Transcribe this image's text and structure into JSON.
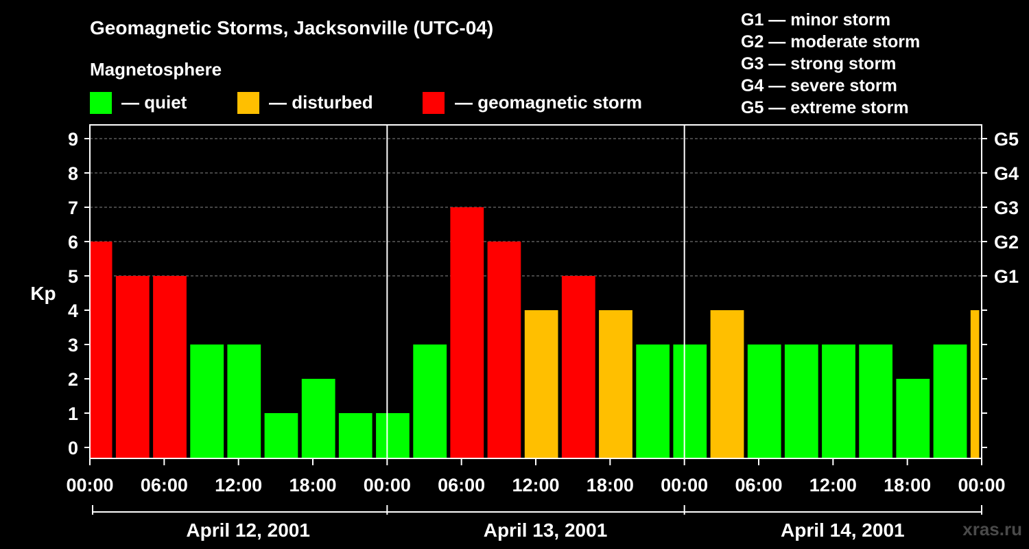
{
  "header": {
    "title": "Geomagnetic Storms, Jacksonville (UTC-04)",
    "legend_heading": "Magnetosphere",
    "legend": [
      {
        "key": "quiet",
        "label": "— quiet",
        "color": "#00ff00"
      },
      {
        "key": "disturbed",
        "label": "— disturbed",
        "color": "#ffbf00"
      },
      {
        "key": "storm",
        "label": "— geomagnetic storm",
        "color": "#ff0000"
      }
    ],
    "storm_scale": [
      "G1 — minor storm",
      "G2 — moderate storm",
      "G3 — strong storm",
      "G4 — severe storm",
      "G5 — extreme storm"
    ]
  },
  "watermark": "xras.ru",
  "chart_data": {
    "type": "bar",
    "title": "Geomagnetic Storms, Jacksonville (UTC-04)",
    "ylabel": "Kp",
    "ylim": [
      0,
      9
    ],
    "yticks": [
      "0",
      "1",
      "2",
      "3",
      "4",
      "5",
      "6",
      "7",
      "8",
      "9"
    ],
    "right_ticks": [
      {
        "kp": 5,
        "label": "G1"
      },
      {
        "kp": 6,
        "label": "G2"
      },
      {
        "kp": 7,
        "label": "G3"
      },
      {
        "kp": 8,
        "label": "G4"
      },
      {
        "kp": 9,
        "label": "G5"
      }
    ],
    "grid": "horizontal dashed at Kp 5–9",
    "xlim_hours": [
      0,
      72
    ],
    "xticks": [
      {
        "hour": 0,
        "label": "00:00"
      },
      {
        "hour": 6,
        "label": "06:00"
      },
      {
        "hour": 12,
        "label": "12:00"
      },
      {
        "hour": 18,
        "label": "18:00"
      },
      {
        "hour": 24,
        "label": "00:00"
      },
      {
        "hour": 30,
        "label": "06:00"
      },
      {
        "hour": 36,
        "label": "12:00"
      },
      {
        "hour": 42,
        "label": "18:00"
      },
      {
        "hour": 48,
        "label": "00:00"
      },
      {
        "hour": 54,
        "label": "06:00"
      },
      {
        "hour": 60,
        "label": "12:00"
      },
      {
        "hour": 66,
        "label": "18:00"
      },
      {
        "hour": 72,
        "label": "00:00"
      }
    ],
    "days": [
      {
        "label": "April 12, 2001",
        "start_hour": 0,
        "end_hour": 24
      },
      {
        "label": "April 13, 2001",
        "start_hour": 24,
        "end_hour": 48
      },
      {
        "label": "April 14, 2001",
        "start_hour": 48,
        "end_hour": 72
      }
    ],
    "colors": {
      "quiet": "#00ff00",
      "disturbed": "#ffbf00",
      "storm": "#ff0000"
    },
    "bars": [
      {
        "start_hour": 0,
        "end_hour": 1.8,
        "kp": 6,
        "level": "storm"
      },
      {
        "start_hour": 2.1,
        "end_hour": 4.8,
        "kp": 5,
        "level": "storm"
      },
      {
        "start_hour": 5.1,
        "end_hour": 7.8,
        "kp": 5,
        "level": "storm"
      },
      {
        "start_hour": 8.1,
        "end_hour": 10.8,
        "kp": 3,
        "level": "quiet"
      },
      {
        "start_hour": 11.1,
        "end_hour": 13.8,
        "kp": 3,
        "level": "quiet"
      },
      {
        "start_hour": 14.1,
        "end_hour": 16.8,
        "kp": 1,
        "level": "quiet"
      },
      {
        "start_hour": 17.1,
        "end_hour": 19.8,
        "kp": 2,
        "level": "quiet"
      },
      {
        "start_hour": 20.1,
        "end_hour": 22.8,
        "kp": 1,
        "level": "quiet"
      },
      {
        "start_hour": 23.1,
        "end_hour": 25.8,
        "kp": 1,
        "level": "quiet"
      },
      {
        "start_hour": 26.1,
        "end_hour": 28.8,
        "kp": 3,
        "level": "quiet"
      },
      {
        "start_hour": 29.1,
        "end_hour": 31.8,
        "kp": 7,
        "level": "storm"
      },
      {
        "start_hour": 32.1,
        "end_hour": 34.8,
        "kp": 6,
        "level": "storm"
      },
      {
        "start_hour": 35.1,
        "end_hour": 37.8,
        "kp": 4,
        "level": "disturbed"
      },
      {
        "start_hour": 38.1,
        "end_hour": 40.8,
        "kp": 5,
        "level": "storm"
      },
      {
        "start_hour": 41.1,
        "end_hour": 43.8,
        "kp": 4,
        "level": "disturbed"
      },
      {
        "start_hour": 44.1,
        "end_hour": 46.8,
        "kp": 3,
        "level": "quiet"
      },
      {
        "start_hour": 47.1,
        "end_hour": 49.8,
        "kp": 3,
        "level": "quiet"
      },
      {
        "start_hour": 50.1,
        "end_hour": 52.8,
        "kp": 4,
        "level": "disturbed"
      },
      {
        "start_hour": 53.1,
        "end_hour": 55.8,
        "kp": 3,
        "level": "quiet"
      },
      {
        "start_hour": 56.1,
        "end_hour": 58.8,
        "kp": 3,
        "level": "quiet"
      },
      {
        "start_hour": 59.1,
        "end_hour": 61.8,
        "kp": 3,
        "level": "quiet"
      },
      {
        "start_hour": 62.1,
        "end_hour": 64.8,
        "kp": 3,
        "level": "quiet"
      },
      {
        "start_hour": 65.1,
        "end_hour": 67.8,
        "kp": 2,
        "level": "quiet"
      },
      {
        "start_hour": 68.1,
        "end_hour": 70.8,
        "kp": 3,
        "level": "quiet"
      },
      {
        "start_hour": 71.1,
        "end_hour": 71.8,
        "kp": 4,
        "level": "disturbed"
      }
    ]
  }
}
